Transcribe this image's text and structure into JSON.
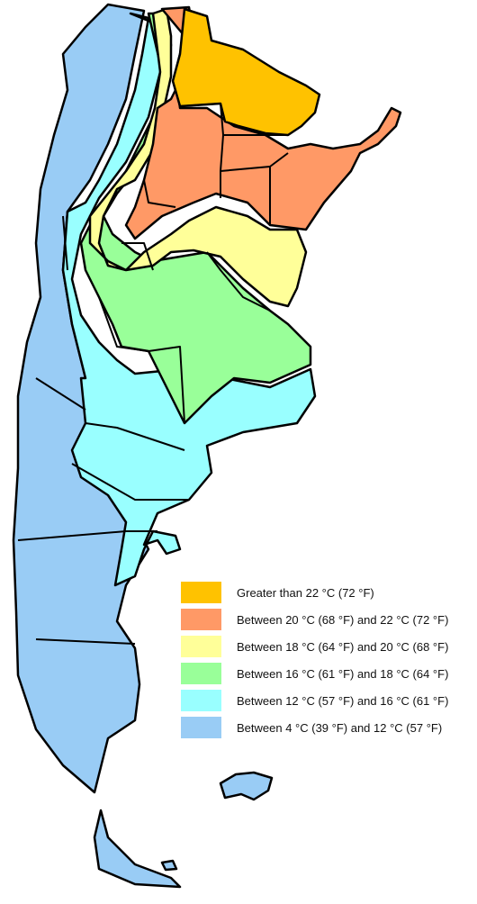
{
  "map": {
    "colors": {
      "gt22": "#FFC200",
      "c20_22": "#FF9966",
      "c18_20": "#FFFF99",
      "c16_18": "#99FF99",
      "c12_16": "#99FFFF",
      "c4_12": "#99CCF5",
      "border": "#000000"
    }
  },
  "legend": {
    "items": [
      {
        "label": "Greater than 22 °C (72 °F)",
        "color": "#FFC200"
      },
      {
        "label": "Between 20 °C (68 °F) and 22 °C (72 °F)",
        "color": "#FF9966"
      },
      {
        "label": "Between 18 °C (64 °F) and 20 °C (68 °F)",
        "color": "#FFFF99"
      },
      {
        "label": "Between 16 °C (61 °F) and 18 °C (64 °F)",
        "color": "#99FF99"
      },
      {
        "label": "Between 12 °C (57 °F) and  16 °C (61 °F)",
        "color": "#99FFFF"
      },
      {
        "label": "Between 4 °C (39 °F) and 12 °C (57 °F)",
        "color": "#99CCF5"
      }
    ]
  }
}
